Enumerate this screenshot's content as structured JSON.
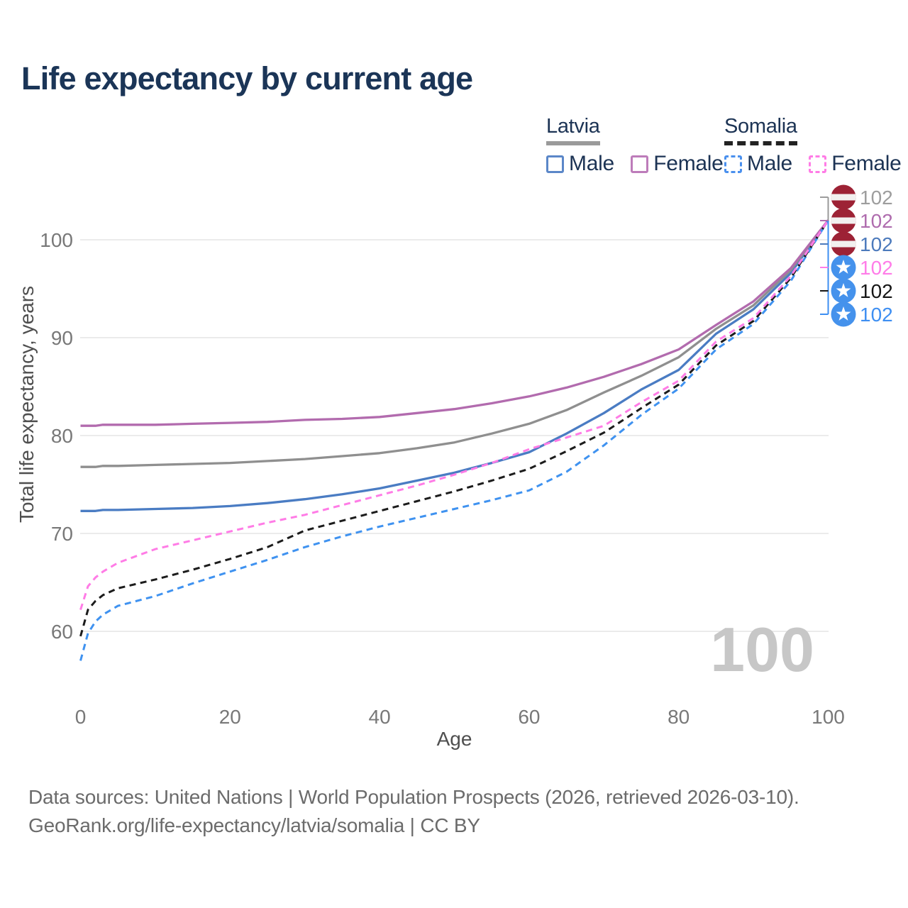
{
  "title": "Life expectancy by current age",
  "legend": {
    "groups": [
      {
        "label": "Latvia",
        "line_color": "#9a9a9a",
        "line_style": "solid",
        "items": [
          {
            "label": "Male",
            "color": "#5b87c8",
            "box_style": "solid"
          },
          {
            "label": "Female",
            "color": "#bd7cba",
            "box_style": "solid"
          }
        ]
      },
      {
        "label": "Somalia",
        "line_color": "#222222",
        "line_style": "dashed",
        "items": [
          {
            "label": "Male",
            "color": "#4a90ee",
            "box_style": "dashed"
          },
          {
            "label": "Female",
            "color": "#ff7ce6",
            "box_style": "dashed"
          }
        ]
      }
    ]
  },
  "chart_data": {
    "type": "line",
    "title": "Life expectancy by current age",
    "xlabel": "Age",
    "ylabel": "Total life expectancy, years",
    "xlim": [
      0,
      100
    ],
    "ylim": [
      56,
      104
    ],
    "xticks": [
      0,
      20,
      40,
      60,
      80,
      100
    ],
    "yticks": [
      60,
      70,
      80,
      90,
      100
    ],
    "grid": "horizontal",
    "legend_position": "top-right",
    "age_counter": "100",
    "x": [
      0,
      1,
      2,
      3,
      5,
      10,
      15,
      20,
      25,
      30,
      35,
      40,
      45,
      50,
      55,
      60,
      65,
      70,
      75,
      80,
      85,
      90,
      95,
      100
    ],
    "series": [
      {
        "id": "latvia-all",
        "name": "Latvia",
        "flag": "latvia",
        "color": "#8f8f8f",
        "label_color": "#9d9d9d",
        "dashed": false,
        "end_label": "102",
        "values": [
          76.8,
          76.8,
          76.8,
          76.9,
          76.9,
          77.0,
          77.1,
          77.2,
          77.4,
          77.6,
          77.9,
          78.2,
          78.7,
          79.3,
          80.2,
          81.2,
          82.6,
          84.4,
          86.1,
          88.0,
          90.9,
          93.3,
          96.9,
          102.0
        ]
      },
      {
        "id": "latvia-female",
        "name": "Latvia Female",
        "flag": "latvia",
        "color": "#b26bae",
        "label_color": "#af6cae",
        "dashed": false,
        "end_label": "102",
        "values": [
          81.0,
          81.0,
          81.0,
          81.1,
          81.1,
          81.1,
          81.2,
          81.3,
          81.4,
          81.6,
          81.7,
          81.9,
          82.3,
          82.7,
          83.3,
          84.0,
          84.9,
          86.0,
          87.3,
          88.8,
          91.3,
          93.7,
          97.1,
          102.0
        ]
      },
      {
        "id": "latvia-male",
        "name": "Latvia Male",
        "flag": "latvia",
        "color": "#4a7cc3",
        "label_color": "#4c7abc",
        "dashed": false,
        "end_label": "102",
        "values": [
          72.3,
          72.3,
          72.3,
          72.4,
          72.4,
          72.5,
          72.6,
          72.8,
          73.1,
          73.5,
          74.0,
          74.6,
          75.4,
          76.2,
          77.2,
          78.3,
          80.2,
          82.3,
          84.7,
          86.7,
          90.4,
          92.9,
          96.6,
          102.0
        ]
      },
      {
        "id": "somalia-female",
        "name": "Somalia Female",
        "flag": "somalia",
        "color": "#ff7ce6",
        "label_color": "#ff7ce8",
        "dashed": true,
        "end_label": "102",
        "values": [
          62.2,
          64.6,
          65.5,
          66.1,
          67.0,
          68.4,
          69.3,
          70.2,
          71.1,
          71.9,
          72.9,
          73.9,
          74.9,
          76.0,
          77.2,
          78.6,
          79.8,
          81.0,
          83.4,
          85.6,
          89.6,
          92.0,
          96.3,
          102.0
        ]
      },
      {
        "id": "somalia-all",
        "name": "Somalia",
        "flag": "somalia",
        "color": "#1c1c1c",
        "label_color": "#161616",
        "dashed": true,
        "end_label": "102",
        "values": [
          59.5,
          62.2,
          63.1,
          63.7,
          64.4,
          65.3,
          66.3,
          67.4,
          68.6,
          70.3,
          71.3,
          72.3,
          73.3,
          74.3,
          75.4,
          76.6,
          78.4,
          80.3,
          82.8,
          85.2,
          89.2,
          91.7,
          96.1,
          102.0
        ]
      },
      {
        "id": "somalia-male",
        "name": "Somalia Male",
        "flag": "somalia",
        "color": "#3f92f0",
        "label_color": "#3e8ff2",
        "dashed": true,
        "end_label": "102",
        "values": [
          57.0,
          59.8,
          61.0,
          61.7,
          62.6,
          63.6,
          64.9,
          66.1,
          67.3,
          68.6,
          69.7,
          70.7,
          71.6,
          72.5,
          73.4,
          74.4,
          76.3,
          79.0,
          82.1,
          84.8,
          88.8,
          91.4,
          95.8,
          102.0
        ]
      }
    ],
    "draw_order": [
      2,
      0,
      1,
      5,
      4,
      3
    ]
  },
  "footer": {
    "line1": "Data sources: United Nations | World Population Prospects (2026, retrieved 2026-03-10).",
    "line2": "GeoRank.org/life-expectancy/latvia/somalia | CC BY"
  }
}
